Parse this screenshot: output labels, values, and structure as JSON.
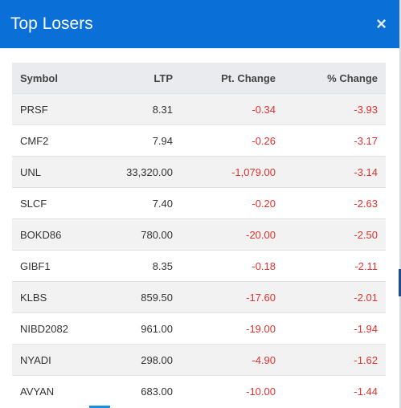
{
  "modal": {
    "title": "Top Losers",
    "close_glyph": "×"
  },
  "table": {
    "headers": {
      "symbol": "Symbol",
      "ltp": "LTP",
      "pt_change": "Pt. Change",
      "pct_change": "% Change"
    },
    "rows": [
      {
        "symbol": "PRSF",
        "ltp": "8.31",
        "pt_change": "-0.34",
        "pct_change": "-3.93"
      },
      {
        "symbol": "CMF2",
        "ltp": "7.94",
        "pt_change": "-0.26",
        "pct_change": "-3.17"
      },
      {
        "symbol": "UNL",
        "ltp": "33,320.00",
        "pt_change": "-1,079.00",
        "pct_change": "-3.14"
      },
      {
        "symbol": "SLCF",
        "ltp": "7.40",
        "pt_change": "-0.20",
        "pct_change": "-2.63"
      },
      {
        "symbol": "BOKD86",
        "ltp": "780.00",
        "pt_change": "-20.00",
        "pct_change": "-2.50"
      },
      {
        "symbol": "GIBF1",
        "ltp": "8.35",
        "pt_change": "-0.18",
        "pct_change": "-2.11"
      },
      {
        "symbol": "KLBS",
        "ltp": "859.50",
        "pt_change": "-17.60",
        "pct_change": "-2.01"
      },
      {
        "symbol": "NIBD2082",
        "ltp": "961.00",
        "pt_change": "-19.00",
        "pct_change": "-1.94"
      },
      {
        "symbol": "NYADI",
        "ltp": "298.00",
        "pt_change": "-4.90",
        "pct_change": "-1.62"
      },
      {
        "symbol": "AVYAN",
        "ltp": "683.00",
        "pt_change": "-10.00",
        "pct_change": "-1.44"
      }
    ]
  },
  "colors": {
    "header_bg": "#0a6fd6",
    "negative": "#e0322f",
    "row_alt": "#f2f2f2"
  }
}
